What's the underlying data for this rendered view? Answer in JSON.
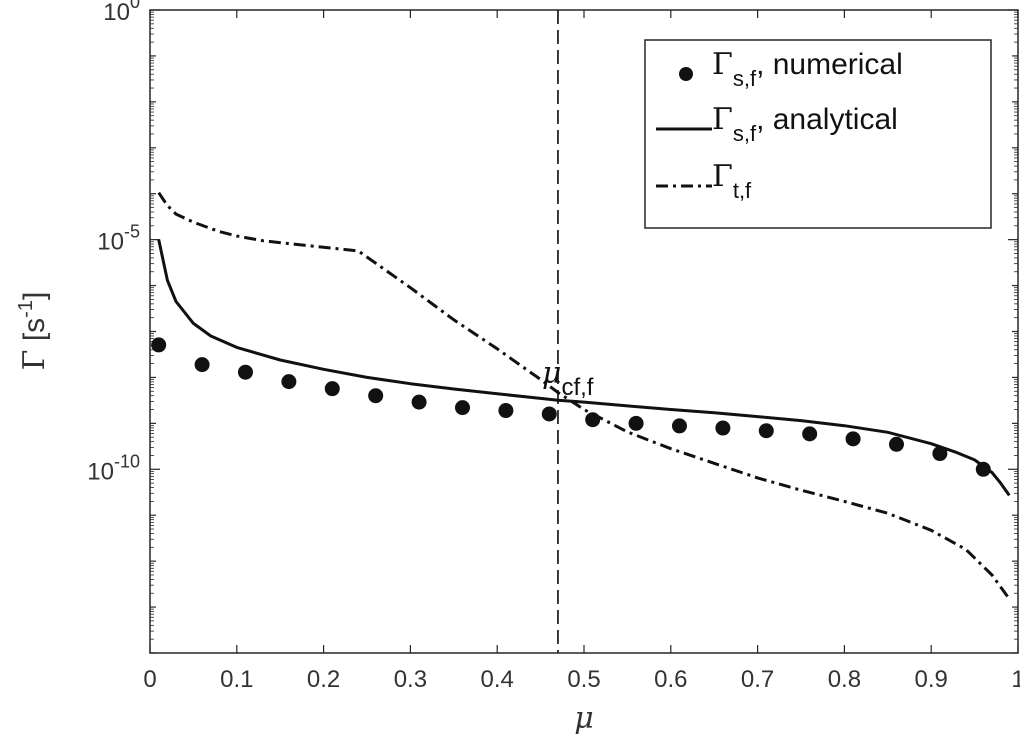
{
  "chart_data": {
    "type": "line",
    "title": "",
    "xlabel": "μ",
    "ylabel": "Γ [s-1]",
    "ylabel_parts": {
      "symbol": "Γ",
      "unit_open": " [s",
      "unit_sup": "-1",
      "unit_close": "]"
    },
    "xlim": [
      0,
      1
    ],
    "ylim": [
      1e-14,
      1
    ],
    "yscale": "log",
    "grid": false,
    "legend_position": "top-right",
    "x_ticks": [
      0,
      0.1,
      0.2,
      0.3,
      0.4,
      0.5,
      0.6,
      0.7,
      0.8,
      0.9,
      1
    ],
    "x_tick_labels": [
      "0",
      "0.1",
      "0.2",
      "0.3",
      "0.4",
      "0.5",
      "0.6",
      "0.7",
      "0.8",
      "0.9",
      "1"
    ],
    "y_ticks": [
      {
        "value": 1,
        "base": "10",
        "exp": "0"
      },
      {
        "value": 1e-05,
        "base": "10",
        "exp": "-5"
      },
      {
        "value": 1e-10,
        "base": "10",
        "exp": "-10"
      }
    ],
    "series": [
      {
        "name": "Γs,f, numerical",
        "legend": {
          "symbol": "Γ",
          "sub": "s,f",
          "text": ", numerical"
        },
        "style": "markers",
        "color": "#111111",
        "x": [
          0.01,
          0.06,
          0.11,
          0.16,
          0.21,
          0.26,
          0.31,
          0.36,
          0.41,
          0.46,
          0.51,
          0.56,
          0.61,
          0.66,
          0.71,
          0.76,
          0.81,
          0.86,
          0.91,
          0.96
        ],
        "y": [
          5.1e-08,
          1.9e-08,
          1.3e-08,
          8.1e-09,
          5.7e-09,
          4e-09,
          2.9e-09,
          2.2e-09,
          1.9e-09,
          1.6e-09,
          1.2e-09,
          1e-09,
          8.8e-10,
          7.9e-10,
          6.9e-10,
          5.9e-10,
          4.6e-10,
          3.5e-10,
          2.2e-10,
          1e-10
        ]
      },
      {
        "name": "Γs,f, analytical",
        "legend": {
          "symbol": "Γ",
          "sub": "s,f",
          "text": ", analytical"
        },
        "style": "solid",
        "color": "#111111",
        "x": [
          0.01,
          0.02,
          0.03,
          0.05,
          0.07,
          0.1,
          0.15,
          0.2,
          0.25,
          0.3,
          0.35,
          0.4,
          0.45,
          0.47,
          0.5,
          0.55,
          0.6,
          0.65,
          0.7,
          0.75,
          0.8,
          0.85,
          0.9,
          0.93,
          0.95,
          0.97,
          0.98,
          0.99
        ],
        "y": [
          1e-05,
          1.3e-06,
          4.5e-07,
          1.5e-07,
          8e-08,
          4.5e-08,
          2.4e-08,
          1.5e-08,
          1e-08,
          7.3e-09,
          5.6e-09,
          4.4e-09,
          3.5e-09,
          3.2e-09,
          2.9e-09,
          2.4e-09,
          2e-09,
          1.7e-09,
          1.4e-09,
          1.15e-09,
          8.9e-10,
          6.4e-10,
          3.6e-10,
          2.3e-10,
          1.6e-10,
          8.5e-11,
          5e-11,
          2.7e-11
        ]
      },
      {
        "name": "Γt,f",
        "legend": {
          "symbol": "Γ",
          "sub": "t,f",
          "text": ""
        },
        "style": "dashdot",
        "color": "#111111",
        "x": [
          0.01,
          0.02,
          0.03,
          0.05,
          0.08,
          0.1,
          0.13,
          0.16,
          0.2,
          0.24,
          0.3,
          0.35,
          0.4,
          0.45,
          0.47,
          0.5,
          0.55,
          0.6,
          0.65,
          0.7,
          0.75,
          0.8,
          0.85,
          0.9,
          0.94,
          0.97,
          0.99
        ],
        "y": [
          0.000105,
          5.5e-05,
          3.6e-05,
          2.4e-05,
          1.5e-05,
          1.2e-05,
          9.5e-06,
          8.2e-06,
          6.8e-06,
          5.7e-06,
          9e-07,
          1.8e-07,
          4.2e-08,
          9e-09,
          4.7e-09,
          2e-09,
          6.5e-10,
          2.8e-10,
          1.35e-10,
          6.5e-11,
          3.5e-11,
          2e-11,
          1.1e-11,
          4.7e-12,
          1.8e-12,
          5e-13,
          1.5e-13
        ]
      }
    ],
    "annotations": [
      {
        "type": "vline",
        "x": 0.47,
        "style": "dashed",
        "label_symbol": "μ",
        "label_sub": "cf,f"
      }
    ]
  }
}
